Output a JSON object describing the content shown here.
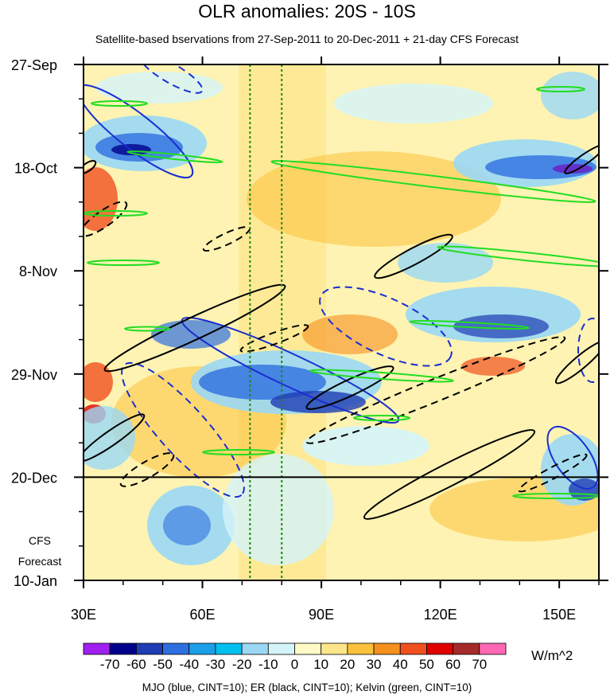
{
  "chart_data": {
    "type": "heatmap",
    "title": "OLR anomalies: 20S - 10S",
    "subtitle": "Satellite-based bservations from 27-Sep-2011 to 20-Dec-2011 + 21-day CFS Forecast",
    "x_axis": {
      "range": [
        30,
        160
      ],
      "ticks": [
        30,
        60,
        90,
        120,
        150
      ],
      "tick_labels": [
        "30E",
        "60E",
        "90E",
        "120E",
        "150E"
      ]
    },
    "y_axis": {
      "start_date": "27-Sep",
      "end_date": "10-Jan",
      "tick_labels": [
        "27-Sep",
        "18-Oct",
        "8-Nov",
        "29-Nov",
        "20-Dec",
        "10-Jan"
      ],
      "forecast_label": "CFS Forecast",
      "forecast_start": "20-Dec"
    },
    "colorbar": {
      "units": "W/m^2",
      "levels": [
        -70,
        -60,
        -50,
        -40,
        -30,
        -20,
        -10,
        0,
        10,
        20,
        30,
        40,
        50,
        60,
        70
      ],
      "level_labels": [
        "-70",
        "-60",
        "-50",
        "-40",
        "-30",
        "-20",
        "-10",
        "0",
        "10",
        "20",
        "30",
        "40",
        "50",
        "60",
        "70"
      ],
      "colors": [
        "#a020f0",
        "#00008b",
        "#1e3cb4",
        "#2e6fe0",
        "#1a9fe8",
        "#00c0f0",
        "#9ad8f5",
        "#d4f4fa",
        "#fffac8",
        "#fde68a",
        "#fbc13c",
        "#f5901e",
        "#f0501e",
        "#e00000",
        "#a52a2a",
        "#ff69b4"
      ]
    },
    "reference_lines_longitude": [
      72,
      80
    ],
    "footnote": "MJO (blue, CINT=10); ER (black, CINT=10); Kelvin (green, CINT=10)"
  }
}
